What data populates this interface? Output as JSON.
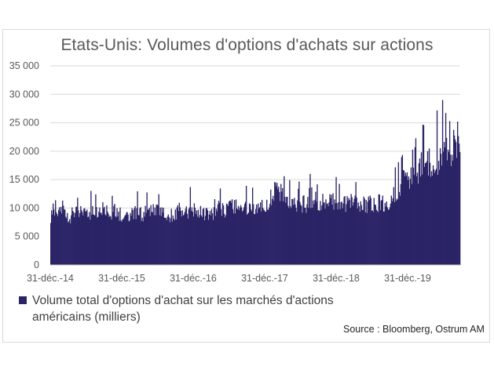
{
  "chart_data": {
    "type": "bar",
    "title": "Etats-Unis: Volumes d'options d'achats sur actions",
    "x_tick_labels": [
      "31-déc.-14",
      "31-déc.-15",
      "31-déc.-16",
      "31-déc.-17",
      "31-déc.-18",
      "31-déc.-19"
    ],
    "y_tick_labels": [
      "0",
      "5 000",
      "10 000",
      "15 000",
      "20 000",
      "25 000",
      "30 000",
      "35 000"
    ],
    "ylim": [
      0,
      35000
    ],
    "grid": true,
    "legend_position": "bottom-left",
    "color": "#2b2467",
    "series": [
      {
        "name": "Volume total d'options d'achat sur les marchés d'actions américains (milliers)",
        "period": "monthly approximation",
        "values": [
          9000,
          10500,
          9500,
          9200,
          8700,
          9800,
          9300,
          8900,
          9500,
          9300,
          10200,
          9600,
          9200,
          9700,
          9000,
          9400,
          9000,
          9800,
          9300,
          9200,
          10100,
          9500,
          9800,
          9400,
          9000,
          9400,
          9800,
          9600,
          9400,
          9900,
          9500,
          9300,
          9600,
          9400,
          10200,
          9900,
          10000,
          10500,
          10700,
          10200,
          9800,
          10000,
          10400,
          10700,
          11200,
          12800,
          14000,
          13000,
          11000,
          10800,
          10500,
          11000,
          10900,
          11200,
          11600,
          11400,
          11300,
          11800,
          11000,
          11400,
          11000,
          11200,
          11400,
          11000,
          10900,
          11300,
          11200,
          11300,
          11500,
          11800,
          13500,
          14800,
          16500,
          15500,
          17000,
          17800,
          18000,
          18500,
          19000,
          19600,
          20200,
          21000,
          21800,
          22500
        ],
        "annotated_peak": 29000
      }
    ],
    "legend_label_lines": [
      "Volume total d'options d'achat sur les marchés d'actions",
      "américains (milliers)"
    ]
  },
  "source": "Source : Bloomberg, Ostrum AM"
}
